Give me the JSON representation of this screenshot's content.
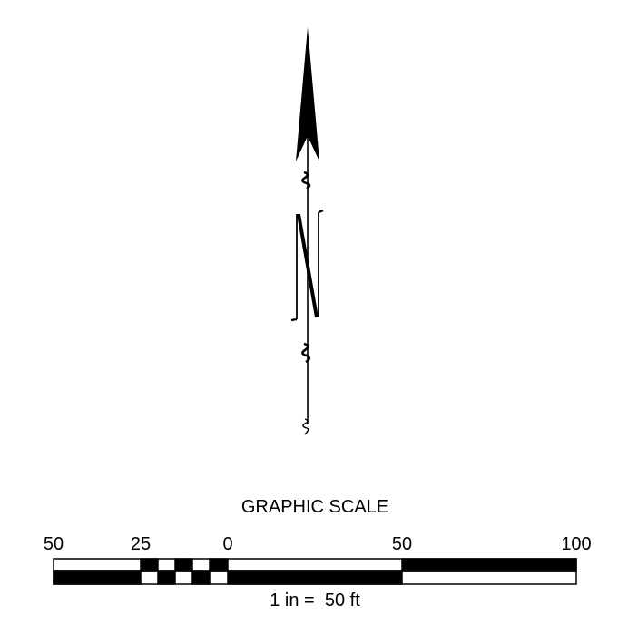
{
  "north_arrow": {
    "icon": "north-arrow-icon"
  },
  "graphic_scale": {
    "title": "GRAPHIC SCALE",
    "tick_labels": [
      "50",
      "25",
      "0",
      "50",
      "100"
    ],
    "ratio_label": "1 in =  50 ft",
    "unit": "ft"
  }
}
